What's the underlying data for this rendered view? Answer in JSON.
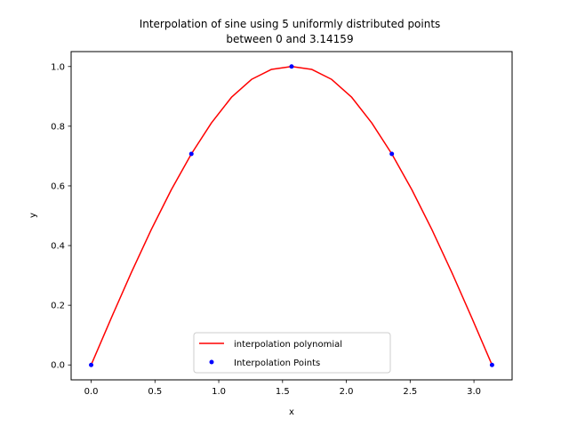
{
  "chart_data": {
    "type": "line",
    "title_lines": [
      "Interpolation of sine using 5 uniformly distributed points",
      "between 0 and 3.14159"
    ],
    "xlabel": "x",
    "ylabel": "y",
    "xlim": [
      -0.157,
      3.299
    ],
    "ylim": [
      -0.05,
      1.05
    ],
    "xticks": [
      0.0,
      0.5,
      1.0,
      1.5,
      2.0,
      2.5,
      3.0
    ],
    "xtick_labels": [
      "0.0",
      "0.5",
      "1.0",
      "1.5",
      "2.0",
      "2.5",
      "3.0"
    ],
    "yticks": [
      0.0,
      0.2,
      0.4,
      0.6,
      0.8,
      1.0
    ],
    "ytick_labels": [
      "0.0",
      "0.2",
      "0.4",
      "0.6",
      "0.8",
      "1.0"
    ],
    "grid": false,
    "legend_position": "bottom-center",
    "series": [
      {
        "name": "interpolation polynomial",
        "kind": "line",
        "color": "#ff0000",
        "x": [
          0.0,
          0.1571,
          0.3142,
          0.4712,
          0.6283,
          0.7854,
          0.9425,
          1.0996,
          1.2566,
          1.4137,
          1.5708,
          1.7279,
          1.885,
          2.042,
          2.1991,
          2.3562,
          2.5133,
          2.6704,
          2.8274,
          2.9845,
          3.1416
        ],
        "y": [
          0.0,
          0.1567,
          0.3091,
          0.4536,
          0.5872,
          0.7071,
          0.811,
          0.8969,
          0.9568,
          0.9905,
          1.0,
          0.9905,
          0.9568,
          0.8969,
          0.811,
          0.7071,
          0.5872,
          0.4536,
          0.3091,
          0.1567,
          0.0
        ]
      },
      {
        "name": "Interpolation Points",
        "kind": "scatter",
        "color": "#0000ff",
        "x": [
          0.0,
          0.7854,
          1.5708,
          2.3562,
          3.1416
        ],
        "y": [
          0.0,
          0.7071,
          1.0,
          0.7071,
          0.0
        ]
      }
    ]
  }
}
